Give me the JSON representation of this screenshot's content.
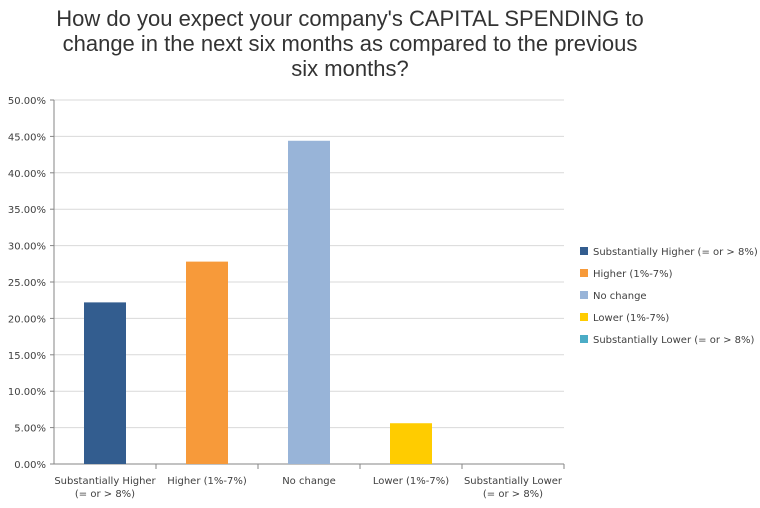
{
  "chart_data": {
    "type": "bar",
    "title_lines": [
      "How do you expect your company's CAPITAL  SPENDING to",
      "change in the next six months as compared to the previous",
      "six months?"
    ],
    "categories": [
      [
        "Substantially Higher",
        "(= or > 8%)"
      ],
      [
        "Higher (1%-7%)"
      ],
      [
        "No change"
      ],
      [
        "Lower (1%-7%)"
      ],
      [
        "Substantially Lower",
        "(= or > 8%)"
      ]
    ],
    "series": [
      {
        "name": "Substantially Higher (= or > 8%)",
        "value": 22.2,
        "color": "#335D8F"
      },
      {
        "name": "Higher (1%-7%)",
        "value": 27.8,
        "color": "#F79A3A"
      },
      {
        "name": "No change",
        "value": 44.4,
        "color": "#98B4D8"
      },
      {
        "name": "Lower (1%-7%)",
        "value": 5.6,
        "color": "#FFCC00"
      },
      {
        "name": "Substantially Lower (= or > 8%)",
        "value": 0,
        "color": "#4BACC6"
      }
    ],
    "yticks": [
      "0.00%",
      "5.00%",
      "10.00%",
      "15.00%",
      "20.00%",
      "25.00%",
      "30.00%",
      "35.00%",
      "40.00%",
      "45.00%",
      "50.00%"
    ],
    "ylim": [
      0,
      50
    ],
    "grid": true,
    "legend_position": "right"
  }
}
